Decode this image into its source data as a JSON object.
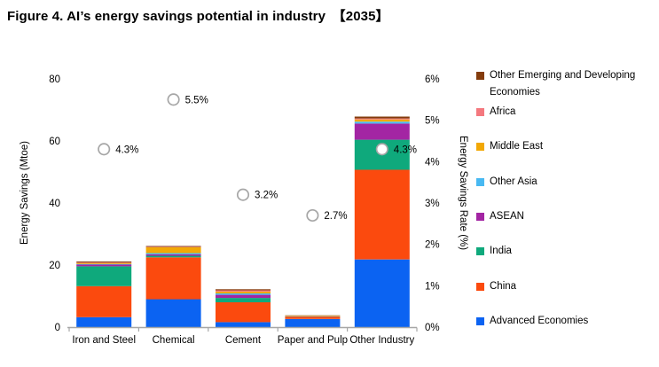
{
  "title": "Figure 4. AI’s energy savings potential in industry　【2035】",
  "chart_data": {
    "type": "bar",
    "subtype": "stacked-bars-with-rate-markers",
    "title": "Figure 4. AI’s energy savings potential in industry 【2035】",
    "categories": [
      "Iron and Steel",
      "Chemical",
      "Cement",
      "Paper and Pulp",
      "Other Industry"
    ],
    "series": [
      {
        "name": "Advanced Economies",
        "color": "#0B63F2",
        "values": [
          3.2,
          9.0,
          1.6,
          2.6,
          21.8
        ]
      },
      {
        "name": "China",
        "color": "#FB4A0E",
        "values": [
          10.0,
          13.5,
          6.4,
          0.7,
          28.9
        ]
      },
      {
        "name": "India",
        "color": "#0FA97C",
        "values": [
          6.4,
          0.5,
          1.4,
          0.08,
          9.7
        ]
      },
      {
        "name": "ASEAN",
        "color": "#A325A3",
        "values": [
          0.55,
          0.45,
          1.0,
          0.05,
          5.2
        ]
      },
      {
        "name": "Other Asia",
        "color": "#48B9F2",
        "values": [
          0.2,
          0.4,
          0.45,
          0.05,
          0.6
        ]
      },
      {
        "name": "Middle East",
        "color": "#F2A805",
        "values": [
          0.3,
          1.9,
          0.6,
          0.2,
          0.7
        ]
      },
      {
        "name": "Africa",
        "color": "#F4787E",
        "values": [
          0.2,
          0.15,
          0.4,
          0.04,
          0.35
        ]
      },
      {
        "name": "Other Emerging and Developing Economies",
        "color": "#843C0C",
        "values": [
          0.3,
          0.25,
          0.35,
          0.08,
          0.6
        ]
      }
    ],
    "rate_series": {
      "name": "Energy Savings Rate",
      "values": [
        4.3,
        5.5,
        3.2,
        2.7,
        4.3
      ],
      "labels": [
        "4.3%",
        "5.5%",
        "3.2%",
        "2.7%",
        "4.3%"
      ],
      "marker_fill": "#FFFFFF",
      "marker_stroke": "#A6A6A6"
    },
    "left_axis": {
      "label": "Energy Savings (Mtoe)",
      "ticks": [
        "0",
        "20",
        "40",
        "60",
        "80"
      ],
      "tick_values": [
        0,
        20,
        40,
        60,
        80
      ],
      "range": [
        0,
        80
      ]
    },
    "right_axis": {
      "label": "Energy Savings Rate (%)",
      "ticks": [
        "0%",
        "1%",
        "2%",
        "3%",
        "4%",
        "5%",
        "6%"
      ],
      "tick_values": [
        0,
        1,
        2,
        3,
        4,
        5,
        6
      ],
      "range": [
        0,
        6
      ]
    },
    "legend_position": "right",
    "legend_order_top_to_bottom": [
      "Other Emerging and Developing Economies",
      "Africa",
      "Middle East",
      "Other Asia",
      "ASEAN",
      "India",
      "China",
      "Advanced Economies"
    ],
    "grid": false,
    "axis_color": "#A6A6A6",
    "text_color": "#000000"
  }
}
